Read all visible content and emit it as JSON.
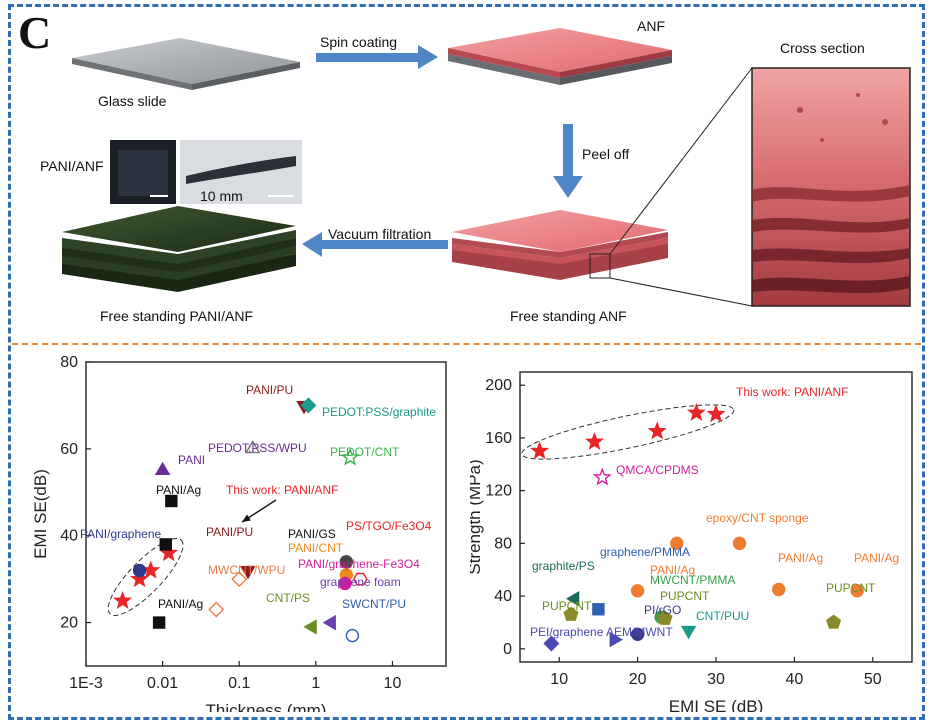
{
  "panel_letter": "C",
  "top": {
    "glass_label": "Glass slide",
    "spin_label": "Spin coating",
    "anf_label": "ANF",
    "cross_label": "Cross section",
    "peel_label": "Peel off",
    "pani_anf_label": "PANI/ANF",
    "scale_label": "10 mm",
    "vacuum_label": "Vacuum filtration",
    "free_pani_label": "Free standing PANI/ANF",
    "free_anf_label": "Free standing ANF"
  },
  "chart_data": [
    {
      "type": "scatter",
      "xlabel": "Thickness (mm)",
      "ylabel": "EMI SE(dB)",
      "xscale": "log",
      "xlim": [
        0.001,
        50
      ],
      "ylim": [
        10,
        80
      ],
      "xticks": [
        "1E-3",
        "0.01",
        "0.1",
        "1",
        "10"
      ],
      "yticks": [
        20,
        40,
        60,
        80
      ],
      "grid": false,
      "this_work_label": "This work: PANI/ANF",
      "series": [
        {
          "name": "This work: PANI/ANF",
          "color": "#e8262a",
          "marker": "star",
          "filled": true,
          "x": [
            0.003,
            0.005,
            0.007,
            0.012
          ],
          "y": [
            25,
            30,
            32,
            36
          ]
        },
        {
          "name": "PANI/graphene",
          "color": "#2e3a8c",
          "marker": "circle",
          "filled": true,
          "x": [
            0.005
          ],
          "y": [
            32
          ]
        },
        {
          "name": "PANI/Ag",
          "color": "#111111",
          "marker": "square",
          "filled": true,
          "x": [
            0.013,
            0.011,
            0.009
          ],
          "y": [
            48,
            38,
            20
          ]
        },
        {
          "name": "PANI",
          "color": "#6a2c8f",
          "marker": "triangle-up",
          "filled": true,
          "x": [
            0.01
          ],
          "y": [
            55
          ]
        },
        {
          "name": "PEDOT:PSS/WPU",
          "color": "#777777",
          "marker": "triangle-up",
          "filled": false,
          "x": [
            0.15
          ],
          "y": [
            60
          ]
        },
        {
          "name": "PANI/PU",
          "color": "#8b1a1a",
          "marker": "triangle-down",
          "filled": true,
          "x": [
            0.7,
            0.13
          ],
          "y": [
            70,
            32
          ]
        },
        {
          "name": "PEDOT:PSS/graphite",
          "color": "#1a9a8a",
          "marker": "diamond",
          "filled": true,
          "x": [
            0.8
          ],
          "y": [
            70
          ]
        },
        {
          "name": "PEDOT/CNT",
          "color": "#39b54a",
          "marker": "star",
          "filled": false,
          "x": [
            2.8
          ],
          "y": [
            58
          ]
        },
        {
          "name": "MWCNT/WPU",
          "color": "#ef7d47",
          "marker": "diamond",
          "filled": false,
          "x": [
            0.05,
            0.1
          ],
          "y": [
            23,
            30
          ]
        },
        {
          "name": "PANI/GS",
          "color": "#444444",
          "marker": "circle",
          "filled": true,
          "x": [
            2.5
          ],
          "y": [
            34
          ]
        },
        {
          "name": "PANI/CNT",
          "color": "#ef8a1e",
          "marker": "circle",
          "filled": true,
          "x": [
            2.5
          ],
          "y": [
            31
          ]
        },
        {
          "name": "PS/TGO/Fe3O4",
          "color": "#e8262a",
          "marker": "hexagon",
          "filled": false,
          "x": [
            3.8
          ],
          "y": [
            30
          ]
        },
        {
          "name": "PANI/graphene-Fe3O4",
          "color": "#d21fa0",
          "marker": "circle",
          "filled": true,
          "x": [
            2.4
          ],
          "y": [
            29
          ]
        },
        {
          "name": "graphene foam",
          "color": "#6a3fb0",
          "marker": "triangle-left",
          "filled": true,
          "x": [
            1.6
          ],
          "y": [
            20
          ]
        },
        {
          "name": "CNT/PS",
          "color": "#6b8e23",
          "marker": "triangle-left",
          "filled": true,
          "x": [
            0.9
          ],
          "y": [
            19
          ]
        },
        {
          "name": "SWCNT/PU",
          "color": "#2e5fb0",
          "marker": "circle",
          "filled": false,
          "x": [
            3.0
          ],
          "y": [
            17
          ]
        }
      ]
    },
    {
      "type": "scatter",
      "xlabel": "EMI SE (dB)",
      "ylabel": "Strength (MPa)",
      "xlim": [
        5,
        55
      ],
      "ylim": [
        -10,
        210
      ],
      "xticks": [
        10,
        20,
        30,
        40,
        50
      ],
      "yticks": [
        0,
        40,
        80,
        120,
        160,
        200
      ],
      "grid": false,
      "this_work_label": "This work: PANI/ANF",
      "series": [
        {
          "name": "This work: PANI/ANF",
          "color": "#e8262a",
          "marker": "star",
          "filled": true,
          "x": [
            7.5,
            14.5,
            22.5,
            27.5,
            30
          ],
          "y": [
            150,
            157,
            165,
            179,
            178
          ]
        },
        {
          "name": "QMCA/CPDMS",
          "color": "#d21fa0",
          "marker": "star",
          "filled": false,
          "x": [
            15.5
          ],
          "y": [
            130
          ]
        },
        {
          "name": "epoxy/CNT sponge",
          "color": "#ef7d30",
          "marker": "circle",
          "filled": true,
          "x": [
            25,
            33
          ],
          "y": [
            80,
            80
          ]
        },
        {
          "name": "PANI/Ag",
          "color": "#ef7d30",
          "marker": "circle",
          "filled": true,
          "x": [
            20,
            38,
            48
          ],
          "y": [
            44,
            45,
            44
          ]
        },
        {
          "name": "graphene/PMMA",
          "color": "#2e5fb0",
          "marker": "square",
          "filled": true,
          "x": [
            15
          ],
          "y": [
            30
          ]
        },
        {
          "name": "graphite/PS",
          "color": "#1a6b5a",
          "marker": "triangle-left",
          "filled": true,
          "x": [
            12
          ],
          "y": [
            38
          ]
        },
        {
          "name": "MWCNT/PMMA",
          "color": "#39a04a",
          "marker": "circle",
          "filled": true,
          "x": [
            23
          ],
          "y": [
            24
          ]
        },
        {
          "name": "PUPCNT",
          "color": "#8a8a2a",
          "marker": "pentagon",
          "filled": true,
          "x": [
            11.5,
            23.5,
            45
          ],
          "y": [
            26,
            23,
            20
          ]
        },
        {
          "name": "PI/rGO",
          "color": "#3a3a8a",
          "marker": "circle",
          "filled": true,
          "x": [
            20
          ],
          "y": [
            11
          ]
        },
        {
          "name": "CNT/PUU",
          "color": "#1a9a8a",
          "marker": "triangle-down",
          "filled": true,
          "x": [
            26.5
          ],
          "y": [
            14
          ]
        },
        {
          "name": "PEI/graphene",
          "color": "#4a4ab0",
          "marker": "diamond",
          "filled": true,
          "x": [
            9
          ],
          "y": [
            4
          ]
        },
        {
          "name": "AEM/MWNT",
          "color": "#4a4ab0",
          "marker": "triangle-right",
          "filled": true,
          "x": [
            17
          ],
          "y": [
            7
          ]
        }
      ]
    }
  ],
  "annotations": {
    "left": [
      {
        "text": "PANI/PU"
      },
      {
        "text": "PEDOT:PSS/graphite"
      },
      {
        "text": "PEDOT:PSS/WPU"
      },
      {
        "text": "PEDOT/CNT"
      },
      {
        "text": "PANI"
      },
      {
        "text": "PANI/Ag"
      },
      {
        "text": "This work: PANI/ANF"
      },
      {
        "text": "PANI/graphene"
      },
      {
        "text": "PANI/PU"
      },
      {
        "text": "PANI/GS"
      },
      {
        "text": "PS/TGO/Fe3O4"
      },
      {
        "text": "PANI/CNT"
      },
      {
        "text": "MWCNT/WPU"
      },
      {
        "text": "PANI/graphene-Fe3O4"
      },
      {
        "text": "graphene foam"
      },
      {
        "text": "CNT/PS"
      },
      {
        "text": "SWCNT/PU"
      },
      {
        "text": "PANI/Ag"
      }
    ],
    "right": [
      {
        "text": "This work: PANI/ANF"
      },
      {
        "text": "QMCA/CPDMS"
      },
      {
        "text": "epoxy/CNT sponge"
      },
      {
        "text": "graphene/PMMA"
      },
      {
        "text": "graphite/PS"
      },
      {
        "text": "PANI/Ag"
      },
      {
        "text": "PANI/Ag"
      },
      {
        "text": "PANI/Ag"
      },
      {
        "text": "MWCNT/PMMA"
      },
      {
        "text": "PUPCNT"
      },
      {
        "text": "PUPCNT"
      },
      {
        "text": "PUPCNT"
      },
      {
        "text": "PI/rGO"
      },
      {
        "text": "CNT/PUU"
      },
      {
        "text": "PEI/graphene"
      },
      {
        "text": "AEM/MWNT"
      }
    ]
  }
}
